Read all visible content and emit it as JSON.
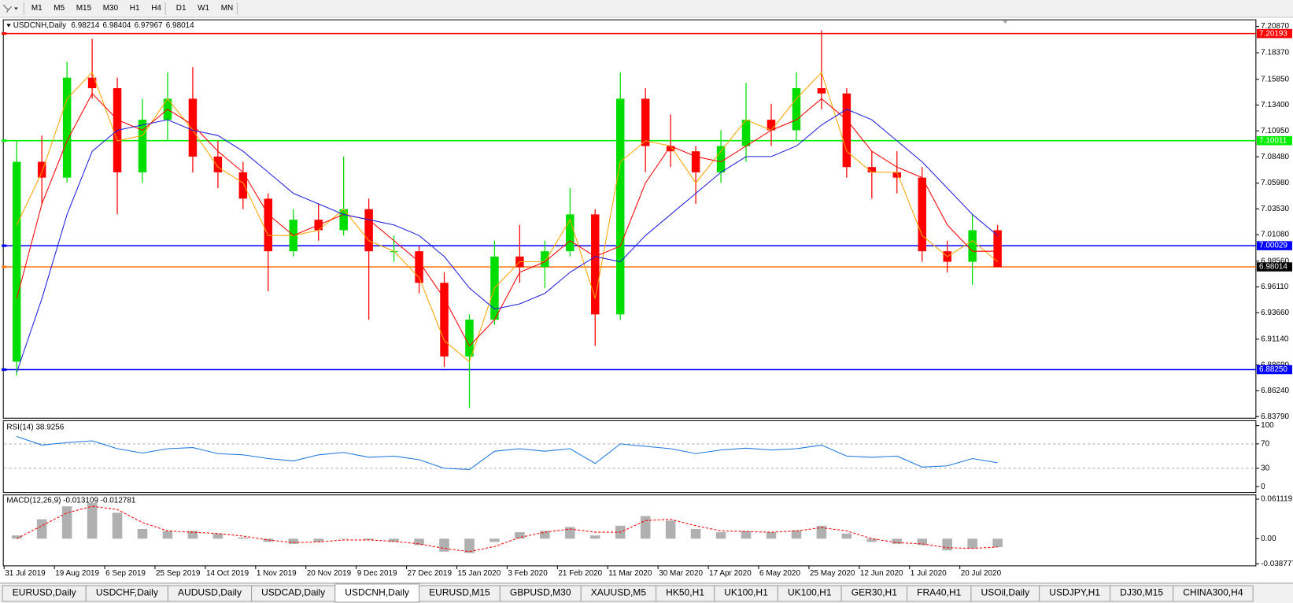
{
  "toolbar": {
    "timeframes": [
      "M1",
      "M5",
      "M15",
      "M30",
      "H1",
      "H4",
      "D1",
      "W1",
      "MN"
    ]
  },
  "chart_data": [
    {
      "type": "candlestick",
      "title": "USDCNH,Daily",
      "title_values": [
        6.98214,
        6.98404,
        6.97967,
        6.98014
      ],
      "categories": [
        "31 Jul 2019",
        null,
        "19 Aug 2019",
        null,
        "6 Sep 2019",
        null,
        "25 Sep 2019",
        null,
        "14 Oct 2019",
        null,
        "1 Nov 2019",
        null,
        "20 Nov 2019",
        null,
        "9 Dec 2019",
        null,
        "27 Dec 2019",
        null,
        "15 Jan 2020",
        null,
        "3 Feb 2020",
        null,
        "21 Feb 2020",
        null,
        "11 Mar 2020",
        null,
        "30 Mar 2020",
        null,
        "17 Apr 2020",
        null,
        "6 May 2020",
        null,
        "25 May 2020",
        null,
        "12 Jun 2020",
        null,
        "1 Jul 2020",
        null,
        "20 Jul 2020",
        null
      ],
      "open": [
        6.89,
        7.08,
        7.065,
        7.16,
        7.15,
        7.07,
        7.12,
        7.14,
        7.085,
        7.07,
        7.045,
        6.995,
        7.025,
        7.015,
        7.035,
        6.995,
        6.995,
        6.965,
        6.895,
        6.93,
        6.99,
        6.98,
        6.995,
        7.03,
        6.935,
        7.14,
        7.095,
        7.09,
        7.07,
        7.095,
        7.12,
        7.11,
        7.15,
        7.145,
        7.075,
        7.07,
        7.065,
        6.995,
        6.985,
        7.015
      ],
      "high": [
        7.1,
        7.105,
        7.175,
        7.197,
        7.16,
        7.14,
        7.165,
        7.17,
        7.1,
        7.08,
        7.05,
        7.035,
        7.04,
        7.085,
        7.045,
        7.01,
        7.0,
        6.975,
        6.935,
        7.005,
        7.02,
        7.005,
        7.055,
        7.035,
        7.165,
        7.15,
        7.125,
        7.095,
        7.11,
        7.155,
        7.135,
        7.165,
        7.205,
        7.15,
        7.09,
        7.09,
        7.075,
        7.005,
        7.03,
        7.02
      ],
      "low": [
        6.877,
        7.04,
        7.06,
        7.14,
        7.03,
        7.06,
        7.1,
        7.07,
        7.055,
        7.035,
        6.957,
        6.99,
        7.005,
        7.01,
        6.93,
        6.985,
        6.955,
        6.885,
        6.846,
        6.925,
        6.965,
        6.96,
        6.99,
        6.905,
        6.93,
        7.07,
        7.075,
        7.04,
        7.06,
        7.08,
        7.095,
        7.1,
        7.13,
        7.065,
        7.045,
        7.05,
        6.985,
        6.975,
        6.963,
        6.98
      ],
      "close": [
        7.08,
        7.065,
        7.16,
        7.15,
        7.07,
        7.12,
        7.14,
        7.085,
        7.07,
        7.045,
        6.995,
        7.025,
        7.015,
        7.035,
        6.995,
        6.995,
        6.965,
        6.895,
        6.93,
        6.99,
        6.98,
        6.995,
        7.03,
        6.935,
        7.14,
        7.095,
        7.09,
        7.07,
        7.095,
        7.12,
        7.11,
        7.15,
        7.145,
        7.075,
        7.07,
        7.065,
        6.995,
        6.985,
        7.015,
        6.98
      ],
      "up_color": "#00dd00",
      "down_color": "#ff0000",
      "series": [
        {
          "color": "#ffa500",
          "values": [
            7.02,
            7.07,
            7.14,
            7.165,
            7.1,
            7.105,
            7.14,
            7.11,
            7.075,
            7.06,
            7.01,
            7.01,
            7.015,
            7.035,
            7.005,
            6.995,
            6.97,
            6.91,
            6.89,
            6.96,
            6.985,
            6.985,
            7.025,
            6.95,
            7.08,
            7.1,
            7.095,
            7.06,
            7.09,
            7.12,
            7.11,
            7.14,
            7.165,
            7.09,
            7.07,
            7.07,
            7.01,
            6.99,
            7.005,
            6.985
          ]
        },
        {
          "color": "#ff0000",
          "values": [
            6.95,
            7.04,
            7.1,
            7.145,
            7.12,
            7.11,
            7.13,
            7.115,
            7.09,
            7.07,
            7.03,
            7.01,
            7.02,
            7.03,
            7.025,
            7.005,
            6.985,
            6.95,
            6.905,
            6.93,
            6.975,
            6.985,
            7.005,
            6.99,
            7.0,
            7.06,
            7.095,
            7.085,
            7.08,
            7.095,
            7.11,
            7.12,
            7.14,
            7.12,
            7.09,
            7.075,
            7.065,
            7.02,
            6.995,
            6.995
          ]
        },
        {
          "color": "#1f1fdf",
          "values": [
            6.88,
            6.95,
            7.03,
            7.09,
            7.11,
            7.115,
            7.12,
            7.11,
            7.105,
            7.09,
            7.07,
            7.05,
            7.04,
            7.03,
            7.025,
            7.02,
            7.01,
            6.99,
            6.96,
            6.94,
            6.945,
            6.955,
            6.975,
            6.99,
            6.985,
            7.01,
            7.03,
            7.05,
            7.07,
            7.085,
            7.085,
            7.095,
            7.115,
            7.13,
            7.12,
            7.1,
            7.08,
            7.055,
            7.03,
            7.01
          ]
        }
      ],
      "hlines": [
        {
          "value": 7.20193,
          "color": "#ff0000",
          "label_color": "#ff0000"
        },
        {
          "value": 7.10011,
          "color": "#00ee00",
          "label_color": "#00ee00"
        },
        {
          "value": 7.00029,
          "color": "#0000ff",
          "label_color": "#0000ff"
        },
        {
          "value": 6.8825,
          "label": "6.88250",
          "color": "#0000ff",
          "label_color": "#0000ff"
        },
        {
          "value": 6.98014,
          "color": "#ff7f27",
          "label_color": "#000000"
        }
      ],
      "ylim": [
        6.8363,
        7.215
      ],
      "yticks": [
        {
          "value": 7.2087,
          "label": "7.20870"
        },
        {
          "value": 7.1837,
          "label": "7.18370"
        },
        {
          "value": 7.1585,
          "label": "7.15850"
        },
        {
          "value": 7.134,
          "label": "7.13400"
        },
        {
          "value": 7.1095,
          "label": "7.10950"
        },
        {
          "value": 7.0848,
          "label": "7.08480"
        },
        {
          "value": 7.0598,
          "label": "7.05980"
        },
        {
          "value": 7.0353,
          "label": "7.03530"
        },
        {
          "value": 7.0108,
          "label": "7.01080"
        },
        {
          "value": 6.9856,
          "label": "6.98560"
        },
        {
          "value": 6.9611,
          "label": "6.96110"
        },
        {
          "value": 6.9366,
          "label": "6.93660"
        },
        {
          "value": 6.9114,
          "label": "6.91140"
        },
        {
          "value": 6.8869,
          "label": "6.88690"
        },
        {
          "value": 6.8624,
          "label": "6.86240"
        },
        {
          "value": 6.8379,
          "label": "6.83790"
        }
      ]
    },
    {
      "type": "line",
      "title": "RSI(14) 38.9256",
      "color": "#1e78e0",
      "values": [
        82,
        68,
        72,
        75,
        62,
        55,
        62,
        64,
        54,
        52,
        46,
        42,
        52,
        56,
        48,
        50,
        44,
        30,
        28,
        58,
        62,
        58,
        62,
        38,
        70,
        66,
        62,
        54,
        60,
        63,
        60,
        62,
        68,
        50,
        48,
        50,
        32,
        34,
        46,
        39
      ],
      "levels": [
        70,
        30
      ],
      "ylim": [
        -9.6,
        108
      ],
      "yticks": [
        100,
        70,
        30,
        0
      ]
    },
    {
      "type": "macd",
      "title": "MACD(12,26,9) -0.013109 -0.012781",
      "hist_color": "#b0b0b0",
      "signal_color": "#ff0000",
      "histogram": [
        0.005,
        0.03,
        0.05,
        0.055,
        0.04,
        0.015,
        0.012,
        0.012,
        0.008,
        0.002,
        -0.005,
        -0.008,
        -0.005,
        0,
        -0.002,
        -0.005,
        -0.01,
        -0.02,
        -0.022,
        -0.005,
        0.01,
        0.012,
        0.018,
        0.005,
        0.02,
        0.035,
        0.028,
        0.015,
        0.01,
        0.012,
        0.01,
        0.013,
        0.02,
        0.008,
        -0.005,
        -0.008,
        -0.01,
        -0.018,
        -0.015,
        -0.013
      ],
      "signal": [
        0,
        0.02,
        0.04,
        0.05,
        0.045,
        0.025,
        0.012,
        0.01,
        0.008,
        0.004,
        -0.002,
        -0.006,
        -0.005,
        -0.002,
        -0.002,
        -0.004,
        -0.008,
        -0.015,
        -0.02,
        -0.012,
        0.002,
        0.01,
        0.015,
        0.01,
        0.01,
        0.028,
        0.03,
        0.02,
        0.012,
        0.011,
        0.01,
        0.012,
        0.017,
        0.012,
        0,
        -0.006,
        -0.008,
        -0.014,
        -0.015,
        -0.013
      ],
      "ylim": [
        -0.042,
        0.0676
      ],
      "yticks": [
        0.061119,
        {
          "value": 0,
          "label": "0.00"
        },
        -0.038777
      ]
    }
  ],
  "tabs": {
    "items": [
      "EURUSD,Daily",
      "USDCHF,Daily",
      "AUDUSD,Daily",
      "USDCAD,Daily",
      "USDCNH,Daily",
      "EURUSD,M15",
      "GBPUSD,M30",
      "XAUUSD,M5",
      "HK50,H1",
      "UK100,H1",
      "UK100,H1",
      "GER30,H1",
      "FRA40,H1",
      "USOil,Daily",
      "USDJPY,H1",
      "DJ30,M15",
      "CHINA300,H4"
    ],
    "active": 4
  }
}
